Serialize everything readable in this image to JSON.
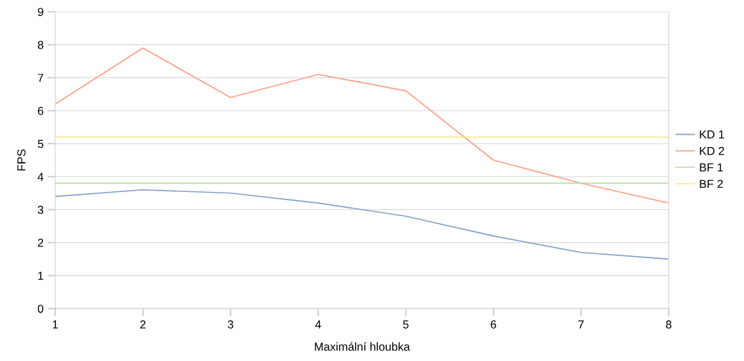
{
  "chart_data": {
    "type": "line",
    "xlabel": "Maximální hloubka",
    "ylabel": "FPS",
    "x": [
      1,
      2,
      3,
      4,
      5,
      6,
      7,
      8
    ],
    "series": [
      {
        "name": "KD 1",
        "color": "#7f9fc9",
        "values": [
          3.4,
          3.6,
          3.5,
          3.2,
          2.8,
          2.2,
          1.7,
          1.5
        ]
      },
      {
        "name": "KD 2",
        "color": "#ff9d85",
        "values": [
          6.2,
          7.9,
          6.4,
          7.1,
          6.6,
          4.5,
          3.8,
          3.2
        ]
      },
      {
        "name": "BF 1",
        "color": "#b8dba3",
        "values": [
          3.8,
          3.8,
          3.8,
          3.8,
          3.8,
          3.8,
          3.8,
          3.8
        ]
      },
      {
        "name": "BF 2",
        "color": "#ffe88a",
        "values": [
          5.2,
          5.2,
          5.2,
          5.2,
          5.2,
          5.2,
          5.2,
          5.2
        ]
      }
    ],
    "xlim": [
      1,
      8
    ],
    "xticks": [
      1,
      2,
      3,
      4,
      5,
      6,
      7,
      8
    ],
    "ylim": [
      0,
      9
    ],
    "yticks": [
      0,
      1,
      2,
      3,
      4,
      5,
      6,
      7,
      8,
      9
    ],
    "grid": "y",
    "legend": "right",
    "marker": "none",
    "line_style": "solid"
  }
}
